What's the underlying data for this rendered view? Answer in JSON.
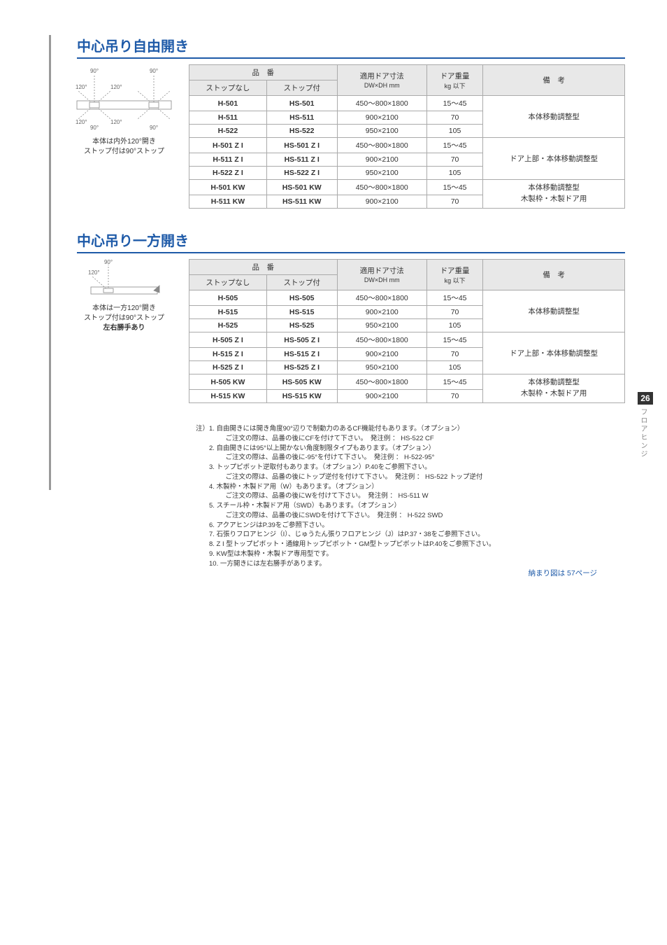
{
  "colors": {
    "accent": "#1e5aa8",
    "border": "#aaaaaa",
    "header_bg": "#e8e8e8",
    "text": "#333333",
    "side_text": "#888888"
  },
  "side_tab": {
    "page": "26",
    "label": "フロアヒンジ"
  },
  "section1": {
    "title": "中心吊り自由開き",
    "diagram_caption1": "本体は内外120°開き",
    "diagram_caption2": "ストップ付は90°ストップ",
    "angles": {
      "a90": "90°",
      "a120": "120°"
    },
    "headers": {
      "hinban": "品　番",
      "col1": "ストップなし",
      "col2": "ストップ付",
      "dim": "適用ドア寸法",
      "dim_sub": "DW×DH mm",
      "weight": "ドア重量",
      "weight_sub": "kg 以下",
      "remarks": "備　考"
    },
    "rows": [
      {
        "c1": "H-501",
        "c2": "HS-501",
        "dim": "450～800×1800",
        "w": "15～45",
        "rem": "本体移動調整型",
        "rowspan": 3
      },
      {
        "c1": "H-511",
        "c2": "HS-511",
        "dim": "900×2100",
        "w": "70"
      },
      {
        "c1": "H-522",
        "c2": "HS-522",
        "dim": "950×2100",
        "w": "105"
      },
      {
        "c1": "H-501 Z I",
        "c2": "HS-501 Z I",
        "dim": "450～800×1800",
        "w": "15～45",
        "rem": "ドア上部・本体移動調整型",
        "rowspan": 3
      },
      {
        "c1": "H-511 Z I",
        "c2": "HS-511 Z I",
        "dim": "900×2100",
        "w": "70"
      },
      {
        "c1": "H-522 Z I",
        "c2": "HS-522 Z I",
        "dim": "950×2100",
        "w": "105"
      },
      {
        "c1": "H-501 KW",
        "c2": "HS-501 KW",
        "dim": "450～800×1800",
        "w": "15～45",
        "rem": "本体移動調整型",
        "rem2": "木製枠・木製ドア用",
        "rowspan": 2
      },
      {
        "c1": "H-511 KW",
        "c2": "HS-511 KW",
        "dim": "900×2100",
        "w": "70"
      }
    ]
  },
  "section2": {
    "title": "中心吊り一方開き",
    "diagram_caption1": "本体は一方120°開き",
    "diagram_caption2": "ストップ付は90°ストップ",
    "diagram_caption3": "左右勝手あり",
    "angles": {
      "a90": "90°",
      "a120": "120°"
    },
    "headers": {
      "hinban": "品　番",
      "col1": "ストップなし",
      "col2": "ストップ付",
      "dim": "適用ドア寸法",
      "dim_sub": "DW×DH mm",
      "weight": "ドア重量",
      "weight_sub": "kg 以下",
      "remarks": "備　考"
    },
    "rows": [
      {
        "c1": "H-505",
        "c2": "HS-505",
        "dim": "450～800×1800",
        "w": "15～45",
        "rem": "本体移動調整型",
        "rowspan": 3
      },
      {
        "c1": "H-515",
        "c2": "HS-515",
        "dim": "900×2100",
        "w": "70"
      },
      {
        "c1": "H-525",
        "c2": "HS-525",
        "dim": "950×2100",
        "w": "105"
      },
      {
        "c1": "H-505 Z I",
        "c2": "HS-505 Z I",
        "dim": "450～800×1800",
        "w": "15～45",
        "rem": "ドア上部・本体移動調整型",
        "rowspan": 3
      },
      {
        "c1": "H-515 Z I",
        "c2": "HS-515 Z I",
        "dim": "900×2100",
        "w": "70"
      },
      {
        "c1": "H-525 Z I",
        "c2": "HS-525 Z I",
        "dim": "950×2100",
        "w": "105"
      },
      {
        "c1": "H-505 KW",
        "c2": "HS-505 KW",
        "dim": "450～800×1800",
        "w": "15～45",
        "rem": "本体移動調整型",
        "rem2": "木製枠・木製ドア用",
        "rowspan": 2
      },
      {
        "c1": "H-515 KW",
        "c2": "HS-515 KW",
        "dim": "900×2100",
        "w": "70"
      }
    ]
  },
  "notes": {
    "prefix": "注）",
    "items": [
      {
        "n": "1.",
        "t": "自由開きには開き角度90°辺りで制動力のあるCF機能付もあります。（オプション）",
        "sub": "ご注文の際は、品番の後にCFを付けて下さい。　発注例 ： HS-522 CF"
      },
      {
        "n": "2.",
        "t": "自由開きには95°以上開かない角度制限タイプもあります。（オプション）",
        "sub": "ご注文の際は、品番の後に-95°を付けて下さい。　発注例 ： H-522-95°"
      },
      {
        "n": "3.",
        "t": "トップピボット逆取付もあります。（オプション）P.40をご参照下さい。",
        "sub": "ご注文の際は、品番の後にトップ逆付を付けて下さい。　発注例 ： HS-522 トップ逆付"
      },
      {
        "n": "4.",
        "t": "木製枠・木製ドア用（W）もあります。（オプション）",
        "sub": "ご注文の際は、品番の後にWを付けて下さい。　発注例 ： HS-511 W"
      },
      {
        "n": "5.",
        "t": "スチール枠・木製ドア用（SWD）もあります。（オプション）",
        "sub": "ご注文の際は、品番の後にSWDを付けて下さい。　発注例 ： H-522 SWD"
      },
      {
        "n": "6.",
        "t": "アクアヒンジはP.39をご参照下さい。"
      },
      {
        "n": "7.",
        "t": "石張りフロアヒンジ（I）、じゅうたん張りフロアヒンジ（J）はP.37・38をご参照下さい。"
      },
      {
        "n": "8.",
        "t": "Z I 型トップピボット・通線用トップピボット・GM型トップピボットはP.40をご参照下さい。"
      },
      {
        "n": "9.",
        "t": "KW型は木製枠・木製ドア専用型です。"
      },
      {
        "n": "10.",
        "t": "一方開きには左右勝手があります。"
      }
    ],
    "link": "納まり図は 57ページ"
  }
}
